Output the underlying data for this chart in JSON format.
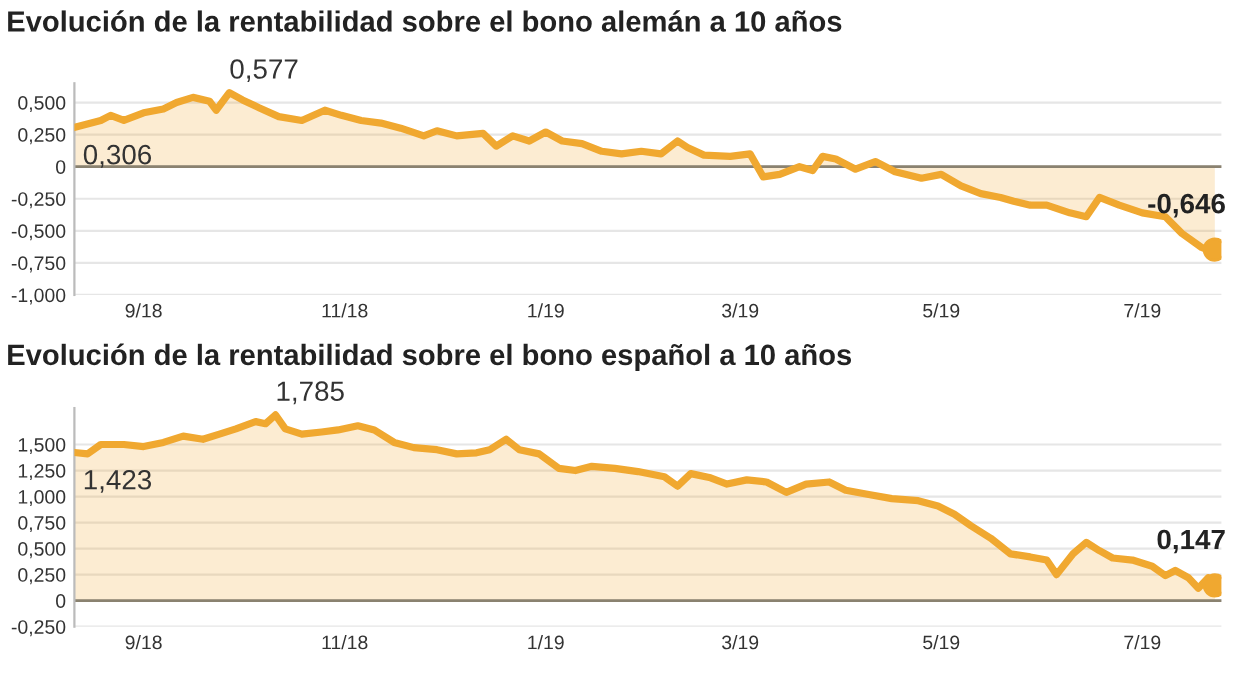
{
  "chart_data": [
    {
      "type": "area",
      "title": "Evolución de la rentabilidad sobre el bono alemán a 10 años",
      "xlim": [
        "2018-08-11",
        "2019-07-25"
      ],
      "ylim": [
        -1.0,
        0.65
      ],
      "xticks": [
        {
          "value": "2018-09-01",
          "label": "9/18"
        },
        {
          "value": "2018-11-01",
          "label": "11/18"
        },
        {
          "value": "2019-01-01",
          "label": "1/19"
        },
        {
          "value": "2019-03-01",
          "label": "3/19"
        },
        {
          "value": "2019-05-01",
          "label": "5/19"
        },
        {
          "value": "2019-07-01",
          "label": "7/19"
        }
      ],
      "yticks": [
        {
          "value": 0.5,
          "label": "0,500"
        },
        {
          "value": 0.25,
          "label": "0,250"
        },
        0,
        {
          "value": -0.25,
          "label": "-0,250"
        },
        {
          "value": -0.5,
          "label": "-0,500"
        },
        {
          "value": -0.75,
          "label": "-0,750"
        },
        {
          "value": -1.0,
          "label": "-1,000"
        }
      ],
      "grid": "y",
      "legend": false,
      "ref_lines": [
        {
          "axis": "y",
          "value": 0,
          "color": "#8a8270"
        }
      ],
      "series": [
        {
          "color": "#f0a830",
          "x": [
            "2018-08-11",
            "2018-08-19",
            "2018-08-22",
            "2018-08-26",
            "2018-09-01",
            "2018-09-07",
            "2018-09-11",
            "2018-09-16",
            "2018-09-21",
            "2018-09-23",
            "2018-09-27",
            "2018-10-01",
            "2018-10-06",
            "2018-10-12",
            "2018-10-19",
            "2018-10-26",
            "2018-10-31",
            "2018-11-06",
            "2018-11-12",
            "2018-11-18",
            "2018-11-25",
            "2018-11-29",
            "2018-12-05",
            "2018-12-13",
            "2018-12-17",
            "2018-12-22",
            "2018-12-27",
            "2019-01-01",
            "2019-01-06",
            "2019-01-12",
            "2019-01-18",
            "2019-01-24",
            "2019-01-30",
            "2019-02-05",
            "2019-02-10",
            "2019-02-13",
            "2019-02-18",
            "2019-02-26",
            "2019-03-04",
            "2019-03-08",
            "2019-03-13",
            "2019-03-19",
            "2019-03-23",
            "2019-03-26",
            "2019-03-30",
            "2019-04-05",
            "2019-04-11",
            "2019-04-17",
            "2019-04-25",
            "2019-05-01",
            "2019-05-07",
            "2019-05-13",
            "2019-05-19",
            "2019-05-23",
            "2019-05-28",
            "2019-06-02",
            "2019-06-09",
            "2019-06-14",
            "2019-06-18",
            "2019-06-24",
            "2019-07-01",
            "2019-07-08",
            "2019-07-13",
            "2019-07-19",
            "2019-07-22",
            "2019-07-23"
          ],
          "values": [
            0.306,
            0.36,
            0.4,
            0.36,
            0.42,
            0.45,
            0.5,
            0.54,
            0.51,
            0.44,
            0.577,
            0.52,
            0.46,
            0.39,
            0.36,
            0.44,
            0.4,
            0.36,
            0.34,
            0.3,
            0.24,
            0.28,
            0.24,
            0.26,
            0.16,
            0.24,
            0.2,
            0.27,
            0.2,
            0.18,
            0.12,
            0.1,
            0.12,
            0.1,
            0.2,
            0.15,
            0.09,
            0.08,
            0.1,
            -0.08,
            -0.06,
            0,
            -0.03,
            0.08,
            0.06,
            -0.02,
            0.04,
            -0.04,
            -0.09,
            -0.06,
            -0.15,
            -0.21,
            -0.24,
            -0.27,
            -0.3,
            -0.3,
            -0.36,
            -0.39,
            -0.24,
            -0.3,
            -0.36,
            -0.39,
            -0.52,
            -0.63,
            -0.66,
            -0.646
          ]
        },
        {
          "type": "scatter",
          "color": "#f0a830",
          "marker": "circle",
          "x": [
            "2019-07-23"
          ],
          "values": [
            -0.646
          ]
        }
      ],
      "annotations": [
        {
          "text": "0,306",
          "x": "2018-08-11",
          "y": 0.306
        },
        {
          "text": "0,577",
          "x": "2018-09-27",
          "y": 0.577
        },
        {
          "text": "-0,646",
          "x": "2019-07-23",
          "y": -0.646
        }
      ]
    },
    {
      "type": "area",
      "title": "Evolución de la rentabilidad sobre el bono español a 10 años",
      "xlim": [
        "2018-08-11",
        "2019-07-25"
      ],
      "ylim": [
        -0.25,
        1.85
      ],
      "xticks": [
        {
          "value": "2018-09-01",
          "label": "9/18"
        },
        {
          "value": "2018-11-01",
          "label": "11/18"
        },
        {
          "value": "2019-01-01",
          "label": "1/19"
        },
        {
          "value": "2019-03-01",
          "label": "3/19"
        },
        {
          "value": "2019-05-01",
          "label": "5/19"
        },
        {
          "value": "2019-07-01",
          "label": "7/19"
        }
      ],
      "yticks": [
        {
          "value": 1.5,
          "label": "1,500"
        },
        {
          "value": 1.25,
          "label": "1,250"
        },
        {
          "value": 1.0,
          "label": "1,000"
        },
        {
          "value": 0.75,
          "label": "0,750"
        },
        {
          "value": 0.5,
          "label": "0,500"
        },
        {
          "value": 0.25,
          "label": "0,250"
        },
        0,
        {
          "value": -0.25,
          "label": "-0,250"
        }
      ],
      "grid": "y",
      "legend": false,
      "ref_lines": [
        {
          "axis": "y",
          "value": 0,
          "color": "#8a8270"
        }
      ],
      "series": [
        {
          "color": "#f0a830",
          "x": [
            "2018-08-11",
            "2018-08-15",
            "2018-08-19",
            "2018-08-26",
            "2018-09-01",
            "2018-09-07",
            "2018-09-13",
            "2018-09-19",
            "2018-09-24",
            "2018-09-29",
            "2018-10-05",
            "2018-10-08",
            "2018-10-11",
            "2018-10-14",
            "2018-10-19",
            "2018-10-25",
            "2018-10-30",
            "2018-11-05",
            "2018-11-10",
            "2018-11-16",
            "2018-11-22",
            "2018-11-29",
            "2018-12-05",
            "2018-12-11",
            "2018-12-15",
            "2018-12-20",
            "2018-12-24",
            "2018-12-30",
            "2019-01-05",
            "2019-01-10",
            "2019-01-15",
            "2019-01-22",
            "2019-01-29",
            "2019-02-06",
            "2019-02-10",
            "2019-02-14",
            "2019-02-20",
            "2019-02-25",
            "2019-03-03",
            "2019-03-09",
            "2019-03-15",
            "2019-03-21",
            "2019-03-28",
            "2019-04-02",
            "2019-04-09",
            "2019-04-16",
            "2019-04-24",
            "2019-04-30",
            "2019-05-05",
            "2019-05-10",
            "2019-05-16",
            "2019-05-22",
            "2019-05-28",
            "2019-06-02",
            "2019-06-05",
            "2019-06-10",
            "2019-06-14",
            "2019-06-18",
            "2019-06-22",
            "2019-06-28",
            "2019-07-04",
            "2019-07-08",
            "2019-07-11",
            "2019-07-15",
            "2019-07-18",
            "2019-07-21",
            "2019-07-23"
          ],
          "values": [
            1.423,
            1.41,
            1.5,
            1.5,
            1.48,
            1.52,
            1.58,
            1.55,
            1.6,
            1.65,
            1.72,
            1.7,
            1.785,
            1.65,
            1.6,
            1.62,
            1.64,
            1.68,
            1.64,
            1.52,
            1.47,
            1.45,
            1.41,
            1.42,
            1.45,
            1.55,
            1.45,
            1.41,
            1.27,
            1.25,
            1.29,
            1.27,
            1.24,
            1.19,
            1.1,
            1.22,
            1.18,
            1.12,
            1.16,
            1.14,
            1.04,
            1.12,
            1.14,
            1.06,
            1.02,
            0.98,
            0.96,
            0.91,
            0.83,
            0.72,
            0.6,
            0.45,
            0.42,
            0.39,
            0.25,
            0.45,
            0.56,
            0.48,
            0.41,
            0.39,
            0.33,
            0.24,
            0.29,
            0.22,
            0.12,
            0.22,
            0.147
          ]
        },
        {
          "type": "scatter",
          "color": "#f0a830",
          "marker": "circle",
          "x": [
            "2019-07-23"
          ],
          "values": [
            0.147
          ]
        }
      ],
      "annotations": [
        {
          "text": "1,423",
          "x": "2018-08-11",
          "y": 1.423
        },
        {
          "text": "1,785",
          "x": "2018-10-11",
          "y": 1.785
        },
        {
          "text": "0,147",
          "x": "2019-07-23",
          "y": 0.147
        }
      ]
    }
  ]
}
